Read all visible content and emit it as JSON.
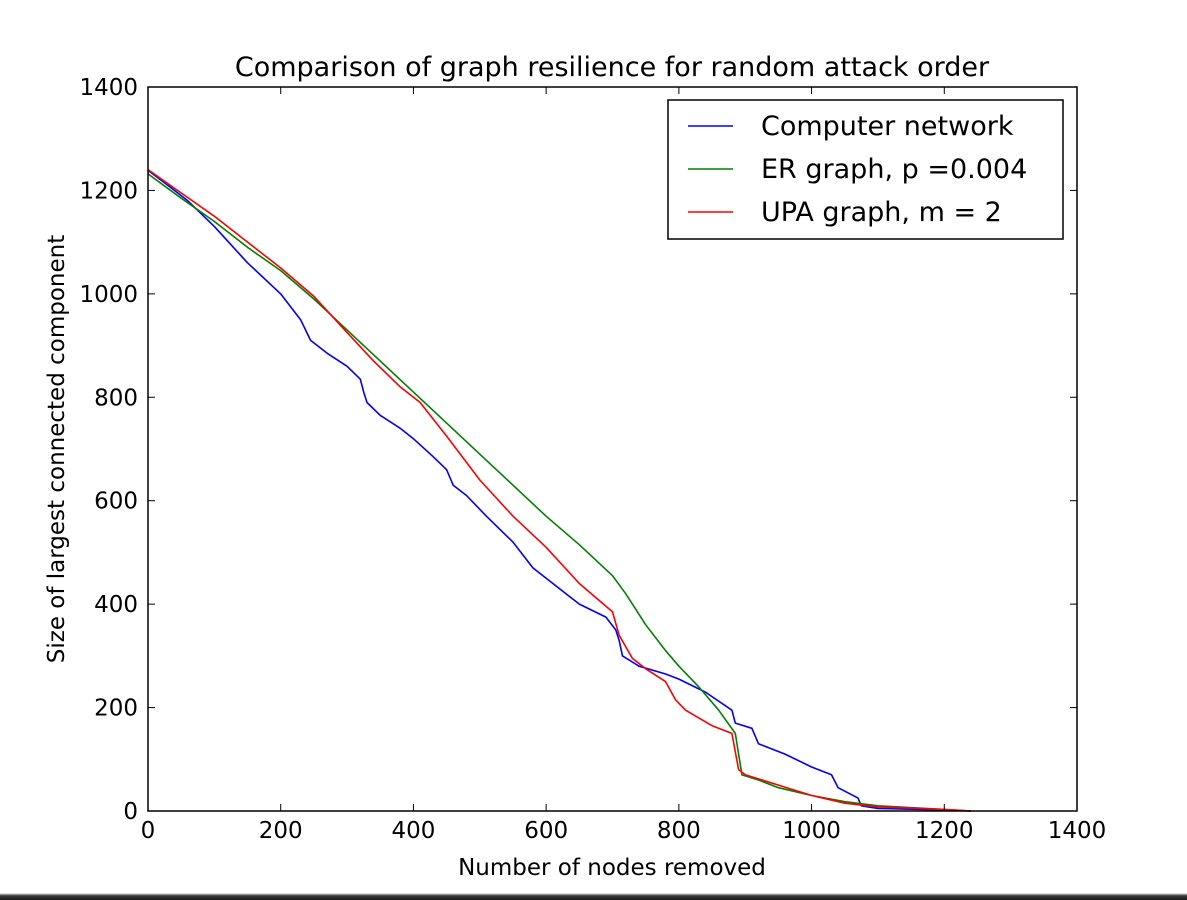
{
  "chart_data": {
    "type": "line",
    "title": "Comparison of graph resilience for random attack order",
    "xlabel": "Number of nodes removed",
    "ylabel": "Size of largest connected component",
    "xlim": [
      0,
      1400
    ],
    "ylim": [
      0,
      1400
    ],
    "xticks": [
      0,
      200,
      400,
      600,
      800,
      1000,
      1200,
      1400
    ],
    "yticks": [
      0,
      200,
      400,
      600,
      800,
      1000,
      1200,
      1400
    ],
    "grid": false,
    "legend_position": "top-right",
    "series": [
      {
        "name": "Computer network",
        "color": "#0000ff",
        "points": [
          [
            0,
            1239
          ],
          [
            30,
            1210
          ],
          [
            60,
            1180
          ],
          [
            100,
            1130
          ],
          [
            150,
            1060
          ],
          [
            200,
            1000
          ],
          [
            230,
            950
          ],
          [
            245,
            910
          ],
          [
            270,
            885
          ],
          [
            300,
            860
          ],
          [
            320,
            835
          ],
          [
            325,
            810
          ],
          [
            330,
            790
          ],
          [
            350,
            765
          ],
          [
            380,
            740
          ],
          [
            400,
            720
          ],
          [
            430,
            685
          ],
          [
            450,
            660
          ],
          [
            460,
            630
          ],
          [
            480,
            610
          ],
          [
            510,
            570
          ],
          [
            550,
            520
          ],
          [
            580,
            470
          ],
          [
            620,
            430
          ],
          [
            650,
            400
          ],
          [
            690,
            375
          ],
          [
            705,
            350
          ],
          [
            710,
            330
          ],
          [
            715,
            300
          ],
          [
            740,
            280
          ],
          [
            780,
            265
          ],
          [
            800,
            255
          ],
          [
            840,
            230
          ],
          [
            880,
            195
          ],
          [
            885,
            170
          ],
          [
            910,
            160
          ],
          [
            920,
            130
          ],
          [
            960,
            110
          ],
          [
            1000,
            85
          ],
          [
            1030,
            70
          ],
          [
            1040,
            45
          ],
          [
            1070,
            25
          ],
          [
            1075,
            10
          ],
          [
            1100,
            5
          ],
          [
            1200,
            2
          ],
          [
            1240,
            0
          ]
        ]
      },
      {
        "name": "ER graph, p =0.004",
        "color": "#008000",
        "points": [
          [
            0,
            1232
          ],
          [
            50,
            1185
          ],
          [
            100,
            1140
          ],
          [
            150,
            1090
          ],
          [
            200,
            1045
          ],
          [
            250,
            990
          ],
          [
            300,
            930
          ],
          [
            350,
            870
          ],
          [
            400,
            810
          ],
          [
            450,
            750
          ],
          [
            500,
            690
          ],
          [
            550,
            630
          ],
          [
            600,
            570
          ],
          [
            650,
            515
          ],
          [
            700,
            455
          ],
          [
            720,
            420
          ],
          [
            750,
            360
          ],
          [
            780,
            310
          ],
          [
            800,
            280
          ],
          [
            830,
            240
          ],
          [
            860,
            195
          ],
          [
            885,
            150
          ],
          [
            895,
            70
          ],
          [
            920,
            60
          ],
          [
            950,
            45
          ],
          [
            1000,
            30
          ],
          [
            1050,
            18
          ],
          [
            1100,
            10
          ],
          [
            1200,
            3
          ],
          [
            1240,
            0
          ]
        ]
      },
      {
        "name": "UPA graph, m = 2",
        "color": "#ff0000",
        "points": [
          [
            0,
            1240
          ],
          [
            50,
            1195
          ],
          [
            100,
            1150
          ],
          [
            150,
            1100
          ],
          [
            200,
            1050
          ],
          [
            250,
            995
          ],
          [
            300,
            925
          ],
          [
            340,
            870
          ],
          [
            380,
            820
          ],
          [
            410,
            790
          ],
          [
            450,
            725
          ],
          [
            500,
            640
          ],
          [
            550,
            570
          ],
          [
            600,
            510
          ],
          [
            650,
            440
          ],
          [
            700,
            385
          ],
          [
            710,
            340
          ],
          [
            730,
            295
          ],
          [
            750,
            275
          ],
          [
            780,
            250
          ],
          [
            795,
            215
          ],
          [
            810,
            195
          ],
          [
            850,
            165
          ],
          [
            880,
            150
          ],
          [
            890,
            80
          ],
          [
            900,
            70
          ],
          [
            950,
            50
          ],
          [
            1000,
            30
          ],
          [
            1050,
            15
          ],
          [
            1100,
            8
          ],
          [
            1200,
            3
          ],
          [
            1240,
            0
          ]
        ]
      }
    ]
  }
}
